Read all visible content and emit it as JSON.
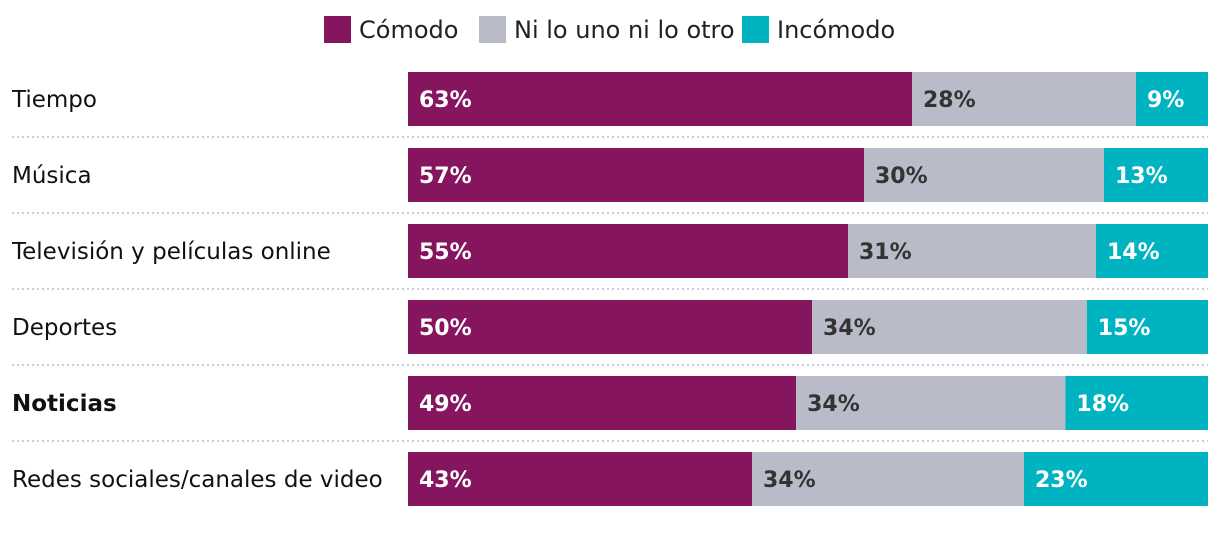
{
  "chart_data": {
    "type": "bar",
    "orientation": "horizontal",
    "stacked": true,
    "percent": true,
    "categories": [
      "Tiempo",
      "Música",
      "Televisión y películas online",
      "Deportes",
      "Noticias",
      "Redes sociales/canales de video"
    ],
    "highlighted_category": "Noticias",
    "series": [
      {
        "name": "Cómodo",
        "color": "#84155e",
        "label_color": "#ffffff",
        "values": [
          63,
          57,
          55,
          50,
          49,
          43
        ]
      },
      {
        "name": "Ni lo uno ni lo otro",
        "color": "#b9bcc8",
        "label_color": "#333333",
        "values": [
          28,
          30,
          31,
          34,
          34,
          34
        ]
      },
      {
        "name": "Incómodo",
        "color": "#00b3c1",
        "label_color": "#ffffff",
        "values": [
          9,
          13,
          14,
          15,
          18,
          23
        ]
      }
    ],
    "legend_position": "top-center",
    "value_suffix": "%",
    "grid": false
  }
}
